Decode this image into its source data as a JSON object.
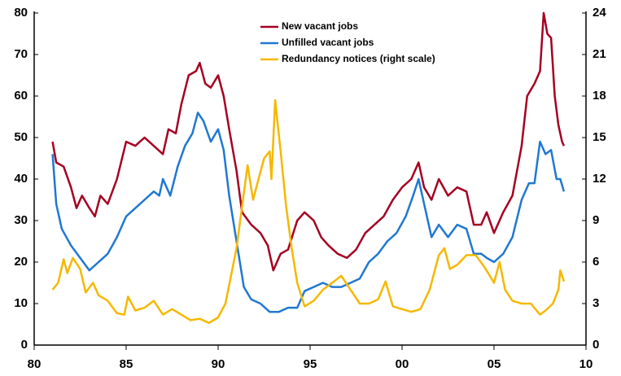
{
  "chart_data": {
    "type": "line",
    "xlim": [
      1980,
      2010
    ],
    "xticks": [
      {
        "value": 1980,
        "label": "80"
      },
      {
        "value": 1985,
        "label": "85"
      },
      {
        "value": 1990,
        "label": "90"
      },
      {
        "value": 1995,
        "label": "95"
      },
      {
        "value": 2000,
        "label": "00"
      },
      {
        "value": 2005,
        "label": "05"
      },
      {
        "value": 2010,
        "label": "10"
      }
    ],
    "ylim": [
      0,
      80
    ],
    "yticks": [
      0,
      10,
      20,
      30,
      40,
      50,
      60,
      70,
      80
    ],
    "y2lim": [
      0,
      24
    ],
    "y2ticks": [
      0,
      3,
      6,
      9,
      12,
      15,
      18,
      21,
      24
    ],
    "legend": "top",
    "series": [
      {
        "name": "New vacant jobs",
        "color": "#a50021",
        "x": [
          1981.0,
          1981.2,
          1981.6,
          1982,
          1982.3,
          1982.6,
          1983,
          1983.3,
          1983.6,
          1984,
          1984.5,
          1985,
          1985.5,
          1986,
          1986.5,
          1987,
          1987.3,
          1987.7,
          1988,
          1988.4,
          1988.8,
          1989,
          1989.3,
          1989.6,
          1990,
          1990.3,
          1990.6,
          1991,
          1991.3,
          1991.8,
          1992.3,
          1992.7,
          1993,
          1993.4,
          1993.8,
          1994.3,
          1994.7,
          1995.2,
          1995.6,
          1996,
          1996.5,
          1997,
          1997.5,
          1998,
          1998.5,
          1999,
          1999.5,
          2000,
          2000.5,
          2000.9,
          2001.2,
          2001.6,
          2002,
          2002.5,
          2003,
          2003.5,
          2003.9,
          2004.3,
          2004.6,
          2005,
          2005.5,
          2006,
          2006.5,
          2006.8,
          2007.2,
          2007.5,
          2007.7,
          2007.9,
          2008.1,
          2008.3,
          2008.5,
          2008.7,
          2008.8
        ],
        "values": [
          49,
          44,
          43,
          38,
          33,
          36,
          33,
          31,
          36,
          34,
          40,
          49,
          48,
          50,
          48,
          46,
          52,
          51,
          58,
          65,
          66,
          68,
          63,
          62,
          65,
          60,
          52,
          42,
          32,
          29,
          27,
          24,
          18,
          22,
          23,
          30,
          32,
          30,
          26,
          24,
          22,
          21,
          23,
          27,
          29,
          31,
          35,
          38,
          40,
          44,
          38,
          35,
          40,
          36,
          38,
          37,
          29,
          29,
          32,
          27,
          32,
          36,
          48,
          60,
          63,
          66,
          80,
          75,
          74,
          60,
          53,
          49,
          48
        ]
      },
      {
        "name": "Unfilled vacant jobs",
        "color": "#1f78d1",
        "x": [
          1981.0,
          1981.2,
          1981.5,
          1982,
          1982.5,
          1983,
          1983.5,
          1984,
          1984.5,
          1985,
          1985.5,
          1986,
          1986.5,
          1986.8,
          1987,
          1987.4,
          1987.8,
          1988.2,
          1988.6,
          1988.9,
          1989.2,
          1989.6,
          1990,
          1990.3,
          1990.6,
          1991,
          1991.4,
          1991.8,
          1992.3,
          1992.8,
          1993.3,
          1993.8,
          1994.3,
          1994.7,
          1995.2,
          1995.7,
          1996.2,
          1996.7,
          1997.2,
          1997.7,
          1998.2,
          1998.7,
          1999.2,
          1999.7,
          2000.2,
          2000.6,
          2000.9,
          2001.2,
          2001.6,
          2002,
          2002.5,
          2003,
          2003.5,
          2003.9,
          2004.3,
          2004.6,
          2005,
          2005.5,
          2006,
          2006.5,
          2006.9,
          2007.2,
          2007.5,
          2007.8,
          2008.1,
          2008.4,
          2008.6,
          2008.8
        ],
        "values": [
          46,
          34,
          28,
          24,
          21,
          18,
          20,
          22,
          26,
          31,
          33,
          35,
          37,
          36,
          40,
          36,
          43,
          48,
          51,
          56,
          54,
          49,
          52,
          47,
          36,
          25,
          14,
          11,
          10,
          8,
          8,
          9,
          9,
          13,
          14,
          15,
          14,
          14,
          15,
          16,
          20,
          22,
          25,
          27,
          31,
          36,
          40,
          34,
          26,
          29,
          26,
          29,
          28,
          22,
          22,
          21,
          20,
          22,
          26,
          35,
          39,
          39,
          49,
          46,
          47,
          40,
          40,
          37
        ]
      },
      {
        "name": "Redundancy notices (right scale)",
        "color": "#f5b800",
        "axis": "y2",
        "x": [
          1981.0,
          1981.3,
          1981.6,
          1981.8,
          1982.1,
          1982.5,
          1982.8,
          1983.2,
          1983.5,
          1984,
          1984.5,
          1984.9,
          1985.1,
          1985.5,
          1986,
          1986.5,
          1987,
          1987.5,
          1988,
          1988.5,
          1989,
          1989.5,
          1990,
          1990.4,
          1990.7,
          1991,
          1991.3,
          1991.6,
          1991.9,
          1992.2,
          1992.5,
          1992.8,
          1992.9,
          1993.1,
          1993.4,
          1993.7,
          1994,
          1994.3,
          1994.7,
          1995.2,
          1995.7,
          1996.2,
          1996.7,
          1997.2,
          1997.7,
          1998.2,
          1998.7,
          1999.1,
          1999.5,
          2000,
          2000.5,
          2001,
          2001.5,
          2002,
          2002.3,
          2002.6,
          2003,
          2003.5,
          2004,
          2004.5,
          2005,
          2005.3,
          2005.6,
          2006,
          2006.5,
          2007,
          2007.5,
          2007.8,
          2008.2,
          2008.5,
          2008.6,
          2008.8
        ],
        "values": [
          4,
          4.5,
          6.2,
          5.2,
          6.3,
          5.5,
          3.8,
          4.5,
          3.6,
          3.2,
          2.3,
          2.2,
          3.5,
          2.5,
          2.7,
          3.2,
          2.2,
          2.6,
          2.2,
          1.8,
          1.9,
          1.6,
          2.0,
          3.0,
          5,
          7,
          10,
          13,
          10.5,
          12,
          13.5,
          14,
          12,
          17.7,
          14,
          10,
          7,
          4.5,
          2.8,
          3.2,
          4,
          4.5,
          5,
          4,
          3,
          3,
          3.3,
          4.6,
          2.8,
          2.6,
          2.4,
          2.6,
          4,
          6.5,
          7,
          5.5,
          5.8,
          6.5,
          6.5,
          5.6,
          4.5,
          6,
          4,
          3.2,
          3,
          3,
          2.2,
          2.5,
          3,
          4,
          5.4,
          4.6
        ]
      }
    ]
  }
}
